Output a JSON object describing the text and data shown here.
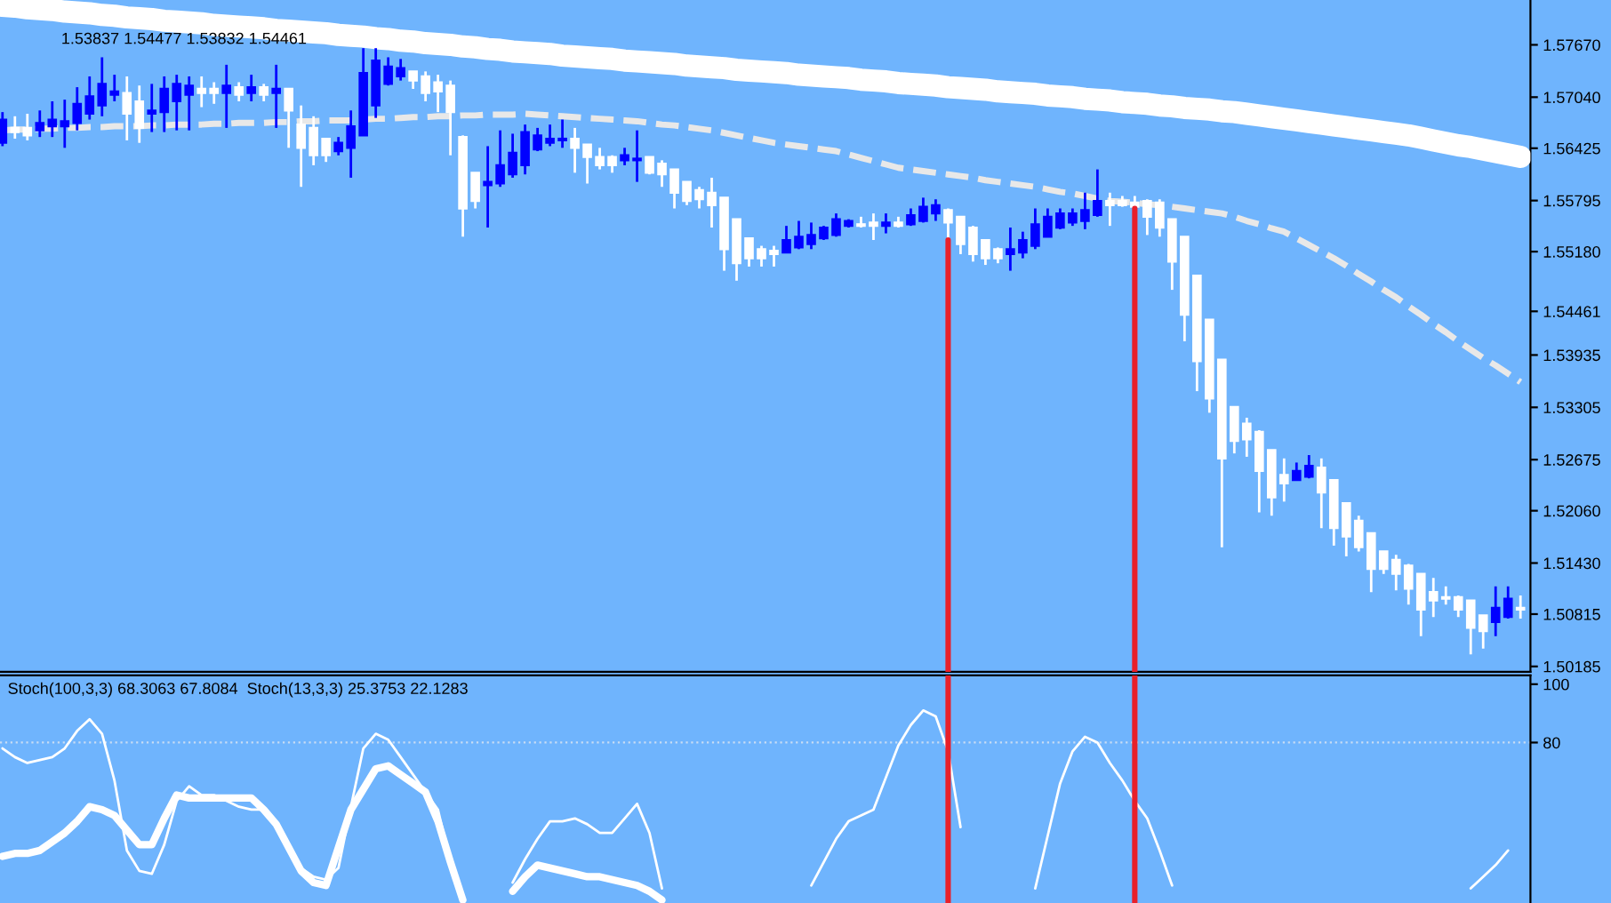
{
  "chart_data": [
    {
      "type": "candlestick",
      "categories": [
        null,
        null,
        null,
        null,
        null,
        null,
        null,
        null,
        null,
        null,
        null,
        null,
        null,
        null,
        null,
        null,
        null,
        null,
        null,
        null,
        null,
        null,
        null,
        null,
        null,
        null,
        null,
        null,
        null,
        null,
        null,
        null,
        null,
        null,
        null,
        null,
        null,
        null,
        null,
        null,
        null,
        null,
        null,
        null,
        null,
        null,
        null,
        null,
        null,
        null,
        null,
        null,
        null,
        null,
        null,
        null,
        null,
        null,
        null,
        null,
        null,
        null,
        null,
        null,
        null,
        null,
        null,
        null,
        null,
        null,
        null,
        null,
        null,
        null,
        null,
        null,
        null,
        null,
        null,
        null,
        null,
        null,
        null,
        null,
        null,
        null,
        null,
        null,
        null,
        null,
        null,
        null,
        null,
        null,
        null,
        null,
        null,
        null,
        null,
        null,
        null,
        null,
        null,
        null,
        null,
        null,
        null,
        null,
        null,
        null,
        null,
        null,
        null,
        null,
        null,
        null,
        null,
        null,
        null,
        null,
        null,
        null,
        null
      ],
      "ohlc": [
        [
          1.5649,
          1.5686,
          1.5645,
          1.5677
        ],
        [
          1.5667,
          1.5681,
          1.5654,
          1.5662
        ],
        [
          1.5667,
          1.5684,
          1.5652,
          1.5658
        ],
        [
          1.5664,
          1.5688,
          1.5656,
          1.5673
        ],
        [
          1.5669,
          1.5699,
          1.5656,
          1.5677
        ],
        [
          1.5669,
          1.5701,
          1.5643,
          1.5675
        ],
        [
          1.5673,
          1.5716,
          1.5664,
          1.5696
        ],
        [
          1.5684,
          1.5729,
          1.5677,
          1.5705
        ],
        [
          1.5694,
          1.5752,
          1.5681,
          1.572
        ],
        [
          1.5707,
          1.5731,
          1.5699,
          1.5711
        ],
        [
          1.5709,
          1.5729,
          1.5652,
          1.5684
        ],
        [
          1.5699,
          1.5718,
          1.5649,
          1.5667
        ],
        [
          1.5684,
          1.572,
          1.5662,
          1.5688
        ],
        [
          1.5686,
          1.5729,
          1.5662,
          1.5714
        ],
        [
          1.5699,
          1.5731,
          1.5664,
          1.572
        ],
        [
          1.5707,
          1.5729,
          1.5664,
          1.5718
        ],
        [
          1.5714,
          1.5729,
          1.5692,
          1.5709
        ],
        [
          1.5714,
          1.5722,
          1.5696,
          1.5709
        ],
        [
          1.5709,
          1.5743,
          1.5667,
          1.5718
        ],
        [
          1.5716,
          1.5722,
          1.5699,
          1.5707
        ],
        [
          1.5709,
          1.5731,
          1.5699,
          1.5716
        ],
        [
          1.5716,
          1.572,
          1.5699,
          1.5707
        ],
        [
          1.5709,
          1.5743,
          1.5667,
          1.5714
        ],
        [
          1.5714,
          1.5714,
          1.5643,
          1.5688
        ],
        [
          1.5671,
          1.5694,
          1.5596,
          1.5643
        ],
        [
          1.5667,
          1.5681,
          1.5622,
          1.5634
        ],
        [
          1.5654,
          1.5654,
          1.5626,
          1.5634
        ],
        [
          1.5639,
          1.5656,
          1.5634,
          1.5649
        ],
        [
          1.5643,
          1.5688,
          1.5607,
          1.5669
        ],
        [
          1.5658,
          1.5763,
          1.5658,
          1.5733
        ],
        [
          1.5694,
          1.5763,
          1.5679,
          1.5748
        ],
        [
          1.572,
          1.5752,
          1.5718,
          1.5741
        ],
        [
          1.5729,
          1.575,
          1.5724,
          1.5739
        ],
        [
          1.5735,
          1.5735,
          1.5714,
          1.5724
        ],
        [
          1.5729,
          1.5735,
          1.5699,
          1.5709
        ],
        [
          1.5722,
          1.5731,
          1.5686,
          1.5711
        ],
        [
          1.5718,
          1.5724,
          1.5634,
          1.5686
        ],
        [
          1.5656,
          1.5658,
          1.5536,
          1.557
        ],
        [
          1.5613,
          1.5613,
          1.557,
          1.5579
        ],
        [
          1.5598,
          1.5645,
          1.5547,
          1.5602
        ],
        [
          1.56,
          1.5664,
          1.5596,
          1.5622
        ],
        [
          1.5611,
          1.566,
          1.5607,
          1.5637
        ],
        [
          1.5622,
          1.5671,
          1.5611,
          1.5662
        ],
        [
          1.5641,
          1.5667,
          1.5639,
          1.5658
        ],
        [
          1.5649,
          1.5671,
          1.5645,
          1.5654
        ],
        [
          1.5652,
          1.5677,
          1.5643,
          1.5654
        ],
        [
          1.5654,
          1.5667,
          1.5613,
          1.5643
        ],
        [
          1.5647,
          1.5647,
          1.56,
          1.5632
        ],
        [
          1.5632,
          1.5643,
          1.5617,
          1.5622
        ],
        [
          1.5632,
          1.5634,
          1.5613,
          1.5622
        ],
        [
          1.5628,
          1.5643,
          1.5622,
          1.5634
        ],
        [
          1.5628,
          1.5664,
          1.5602,
          1.563
        ],
        [
          1.5632,
          1.5632,
          1.5611,
          1.5613
        ],
        [
          1.5624,
          1.5628,
          1.5596,
          1.5611
        ],
        [
          1.5617,
          1.5617,
          1.557,
          1.5589
        ],
        [
          1.5602,
          1.5602,
          1.5574,
          1.5579
        ],
        [
          1.5592,
          1.5596,
          1.557,
          1.5581
        ],
        [
          1.5589,
          1.5607,
          1.5547,
          1.5574
        ],
        [
          1.5583,
          1.5583,
          1.5495,
          1.5521
        ],
        [
          1.5557,
          1.5557,
          1.5483,
          1.5504
        ],
        [
          1.5534,
          1.5534,
          1.55,
          1.551
        ],
        [
          1.5521,
          1.5525,
          1.55,
          1.551
        ],
        [
          1.5519,
          1.5525,
          1.55,
          1.5515
        ],
        [
          1.5517,
          1.5549,
          1.5517,
          1.5532
        ],
        [
          1.5523,
          1.5555,
          1.5521,
          1.5536
        ],
        [
          1.5527,
          1.5553,
          1.5521,
          1.5538
        ],
        [
          1.5534,
          1.5549,
          1.5532,
          1.5547
        ],
        [
          1.5538,
          1.5564,
          1.5536,
          1.5557
        ],
        [
          1.5549,
          1.5557,
          1.5547,
          1.5555
        ],
        [
          1.5551,
          1.556,
          1.5547,
          1.5549
        ],
        [
          1.5553,
          1.5564,
          1.5532,
          1.5549
        ],
        [
          1.5549,
          1.5564,
          1.554,
          1.5553
        ],
        [
          1.5553,
          1.556,
          1.5547,
          1.5549
        ],
        [
          1.5551,
          1.557,
          1.5549,
          1.5562
        ],
        [
          1.5555,
          1.5583,
          1.5553,
          1.5572
        ],
        [
          1.5564,
          1.5581,
          1.5555,
          1.5574
        ],
        [
          1.5568,
          1.557,
          1.5532,
          1.5553
        ],
        [
          1.556,
          1.556,
          1.5515,
          1.5527
        ],
        [
          1.5547,
          1.5549,
          1.5506,
          1.5515
        ],
        [
          1.5532,
          1.5532,
          1.5502,
          1.551
        ],
        [
          1.5521,
          1.5523,
          1.5504,
          1.551
        ],
        [
          1.5515,
          1.5547,
          1.5495,
          1.5521
        ],
        [
          1.5517,
          1.5542,
          1.551,
          1.5532
        ],
        [
          1.5525,
          1.557,
          1.5521,
          1.5551
        ],
        [
          1.5536,
          1.557,
          1.5536,
          1.556
        ],
        [
          1.5547,
          1.557,
          1.5545,
          1.5564
        ],
        [
          1.5553,
          1.557,
          1.5549,
          1.5564
        ],
        [
          1.5555,
          1.5589,
          1.5545,
          1.5568
        ],
        [
          1.5562,
          1.5617,
          1.556,
          1.5579
        ],
        [
          1.5579,
          1.5589,
          1.5549,
          1.5574
        ],
        [
          1.5579,
          1.5585,
          1.5572,
          1.5574
        ],
        [
          1.5577,
          1.5585,
          1.557,
          1.5572
        ],
        [
          1.5579,
          1.5581,
          1.5538,
          1.556
        ],
        [
          1.5577,
          1.5581,
          1.5536,
          1.5547
        ],
        [
          1.5557,
          1.5557,
          1.5472,
          1.5506
        ],
        [
          1.5536,
          1.5536,
          1.541,
          1.5442
        ],
        [
          1.5489,
          1.5489,
          1.535,
          1.5386
        ],
        [
          1.5436,
          1.5436,
          1.5324,
          1.5341
        ],
        [
          1.5388,
          1.5388,
          1.5162,
          1.5269
        ],
        [
          1.5331,
          1.5331,
          1.5275,
          1.529
        ],
        [
          1.5311,
          1.5318,
          1.5271,
          1.5292
        ],
        [
          1.5301,
          1.5303,
          1.5204,
          1.5254
        ],
        [
          1.5279,
          1.5279,
          1.52,
          1.5222
        ],
        [
          1.5249,
          1.5269,
          1.5217,
          1.5239
        ],
        [
          1.5243,
          1.5264,
          1.5243,
          1.5254
        ],
        [
          1.5247,
          1.5273,
          1.5245,
          1.526
        ],
        [
          1.5258,
          1.5269,
          1.5185,
          1.5228
        ],
        [
          1.5243,
          1.5243,
          1.5164,
          1.5185
        ],
        [
          1.5215,
          1.5215,
          1.5151,
          1.5175
        ],
        [
          1.5194,
          1.52,
          1.5157,
          1.5162
        ],
        [
          1.5179,
          1.5179,
          1.5108,
          1.5136
        ],
        [
          1.5157,
          1.5157,
          1.513,
          1.5136
        ],
        [
          1.5147,
          1.5153,
          1.511,
          1.513
        ],
        [
          1.514,
          1.5142,
          1.5093,
          1.5112
        ],
        [
          1.513,
          1.513,
          1.5055,
          1.5087
        ],
        [
          1.5108,
          1.5125,
          1.5078,
          1.5098
        ],
        [
          1.5102,
          1.5115,
          1.5093,
          1.51
        ],
        [
          1.5102,
          1.5104,
          1.5078,
          1.5087
        ],
        [
          1.5098,
          1.5098,
          1.5033,
          1.5065
        ],
        [
          1.508,
          1.508,
          1.504,
          1.5061
        ],
        [
          1.5072,
          1.5115,
          1.5055,
          1.5089
        ],
        [
          1.5078,
          1.5115,
          1.5076,
          1.51
        ],
        [
          1.5089,
          1.5104,
          1.5076,
          1.5087
        ]
      ],
      "colors": [
        "#0000ff",
        "#ffffff",
        "#ffffff",
        "#0000ff",
        "#0000ff",
        "#0000ff",
        "#0000ff",
        "#0000ff",
        "#0000ff",
        "#0000ff",
        "#ffffff",
        "#ffffff",
        "#0000ff",
        "#0000ff",
        "#0000ff",
        "#0000ff",
        "#ffffff",
        "#ffffff",
        "#0000ff",
        "#ffffff",
        "#0000ff",
        "#ffffff",
        "#0000ff",
        "#ffffff",
        "#ffffff",
        "#ffffff",
        "#ffffff",
        "#0000ff",
        "#0000ff",
        "#0000ff",
        "#0000ff",
        "#0000ff",
        "#0000ff",
        "#ffffff",
        "#ffffff",
        "#ffffff",
        "#ffffff",
        "#ffffff",
        "#ffffff",
        "#0000ff",
        "#0000ff",
        "#0000ff",
        "#0000ff",
        "#0000ff",
        "#0000ff",
        "#0000ff",
        "#ffffff",
        "#ffffff",
        "#ffffff",
        "#ffffff",
        "#0000ff",
        "#0000ff",
        "#ffffff",
        "#ffffff",
        "#ffffff",
        "#ffffff",
        "#ffffff",
        "#ffffff",
        "#ffffff",
        "#ffffff",
        "#ffffff",
        "#ffffff",
        "#ffffff",
        "#0000ff",
        "#0000ff",
        "#0000ff",
        "#0000ff",
        "#0000ff",
        "#0000ff",
        "#ffffff",
        "#ffffff",
        "#0000ff",
        "#ffffff",
        "#0000ff",
        "#0000ff",
        "#0000ff",
        "#ffffff",
        "#ffffff",
        "#ffffff",
        "#ffffff",
        "#ffffff",
        "#0000ff",
        "#0000ff",
        "#0000ff",
        "#0000ff",
        "#0000ff",
        "#0000ff",
        "#0000ff",
        "#0000ff",
        "#ffffff",
        "#ffffff",
        "#ffffff",
        "#ffffff",
        "#ffffff",
        "#ffffff",
        "#ffffff",
        "#ffffff",
        "#ffffff",
        "#ffffff",
        "#ffffff",
        "#ffffff",
        "#ffffff",
        "#ffffff",
        "#ffffff",
        "#0000ff",
        "#0000ff",
        "#ffffff",
        "#ffffff",
        "#ffffff",
        "#ffffff",
        "#ffffff",
        "#ffffff",
        "#ffffff",
        "#ffffff",
        "#ffffff",
        "#ffffff",
        "#ffffff",
        "#ffffff",
        "#ffffff",
        "#ffffff",
        "#0000ff",
        "#0000ff",
        "#ffffff"
      ],
      "series": [
        {
          "type": "line",
          "color": "#ffffff",
          "line_style": "solid",
          "values": [
            1.5814,
            1.5813,
            1.5811,
            1.581,
            1.5809,
            1.5807,
            1.5806,
            1.5805,
            1.5803,
            1.5802,
            1.58,
            1.5799,
            1.5798,
            1.5796,
            1.5795,
            1.5794,
            1.5793,
            1.5791,
            1.579,
            1.5789,
            1.5788,
            1.5787,
            1.5785,
            1.5784,
            1.5783,
            1.5782,
            1.5781,
            1.5779,
            1.5778,
            1.5777,
            1.5775,
            1.5774,
            1.5772,
            1.5771,
            1.5769,
            1.5768,
            1.5767,
            1.5765,
            1.5764,
            1.5762,
            1.5761,
            1.5759,
            1.5758,
            1.5757,
            1.5756,
            1.5754,
            1.5753,
            1.5752,
            1.5751,
            1.575,
            1.5748,
            1.5747,
            1.5746,
            1.5745,
            1.5744,
            1.5742,
            1.5741,
            1.574,
            1.5739,
            1.5737,
            1.5736,
            1.5735,
            1.5734,
            1.5733,
            1.5731,
            1.573,
            1.5729,
            1.5728,
            1.5727,
            1.5725,
            1.5724,
            1.5723,
            1.5721,
            1.572,
            1.5719,
            1.5718,
            1.5716,
            1.5715,
            1.5714,
            1.5713,
            1.5711,
            1.571,
            1.5709,
            1.5708,
            1.5706,
            1.5705,
            1.5704,
            1.5702,
            1.5701,
            1.57,
            1.5698,
            1.5697,
            1.5696,
            1.5694,
            1.5693,
            1.5691,
            1.569,
            1.5689,
            1.5687,
            1.5686,
            1.5684,
            1.5682,
            1.568,
            1.5678,
            1.5676,
            1.5674,
            1.5672,
            1.567,
            1.5668,
            1.5666,
            1.5664,
            1.5662,
            1.566,
            1.5658,
            1.5655,
            1.5652,
            1.5649,
            1.5646,
            1.5644,
            1.5641,
            1.5638,
            1.5635,
            1.5632
          ]
        },
        {
          "type": "line",
          "color": "#e8e8e8",
          "line_style": "dashed",
          "values": [
            1.5664,
            1.5665,
            1.5665,
            1.5666,
            1.5666,
            1.5667,
            1.5667,
            1.5668,
            1.5668,
            1.5669,
            1.5669,
            1.5669,
            1.567,
            1.567,
            1.5671,
            1.5671,
            1.5671,
            1.5672,
            1.5672,
            1.5673,
            1.5673,
            1.5673,
            1.5674,
            1.5674,
            1.5675,
            1.5675,
            1.5676,
            1.5676,
            1.5676,
            1.5677,
            1.5678,
            1.5678,
            1.5679,
            1.568,
            1.568,
            1.5681,
            1.5681,
            1.5682,
            1.5682,
            1.5683,
            1.5683,
            1.5683,
            1.5684,
            1.5683,
            1.5682,
            1.5681,
            1.568,
            1.5679,
            1.5678,
            1.5677,
            1.5676,
            1.5675,
            1.5673,
            1.5671,
            1.567,
            1.5668,
            1.5666,
            1.5664,
            1.5661,
            1.5658,
            1.5655,
            1.5652,
            1.5649,
            1.5647,
            1.5645,
            1.5643,
            1.5641,
            1.5639,
            1.5635,
            1.5631,
            1.5627,
            1.5623,
            1.5619,
            1.5617,
            1.5615,
            1.5613,
            1.5611,
            1.5609,
            1.5607,
            1.5604,
            1.5602,
            1.56,
            1.5598,
            1.5596,
            1.5593,
            1.559,
            1.5588,
            1.5585,
            1.5582,
            1.5579,
            1.5578,
            1.5577,
            1.5575,
            1.5574,
            1.5572,
            1.557,
            1.5568,
            1.5566,
            1.5564,
            1.556,
            1.5555,
            1.5551,
            1.5546,
            1.5542,
            1.5534,
            1.5526,
            1.5518,
            1.551,
            1.5501,
            1.5491,
            1.5482,
            1.5472,
            1.5463,
            1.5452,
            1.5442,
            1.5431,
            1.5421,
            1.541,
            1.54,
            1.539,
            1.5381,
            1.5371,
            1.5361
          ]
        }
      ],
      "ylim": [
        1.5012,
        1.5821
      ],
      "yticks": [
        {
          "value": 1.5767,
          "label": "1.57670"
        },
        {
          "value": 1.5704,
          "label": "1.57040"
        },
        {
          "value": 1.56425,
          "label": "1.56425"
        },
        {
          "value": 1.55795,
          "label": "1.55795"
        },
        {
          "value": 1.5518,
          "label": "1.55180"
        },
        {
          "value": 1.54461,
          "label": "1.54461"
        },
        {
          "value": 1.53935,
          "label": "1.53935"
        },
        {
          "value": 1.53305,
          "label": "1.53305"
        },
        {
          "value": 1.52675,
          "label": "1.52675"
        },
        {
          "value": 1.5206,
          "label": "1.52060"
        },
        {
          "value": 1.5143,
          "label": "1.51430"
        },
        {
          "value": 1.50815,
          "label": "1.50815"
        },
        {
          "value": 1.50185,
          "label": "1.50185"
        }
      ],
      "tick_labels": "y",
      "annotations": [
        "1.53837 1.54477 1.53832 1.54461"
      ]
    },
    {
      "type": "line",
      "categories": [
        null,
        null,
        null,
        null,
        null,
        null,
        null,
        null,
        null,
        null,
        null,
        null,
        null,
        null,
        null,
        null,
        null,
        null,
        null,
        null,
        null,
        null,
        null,
        null,
        null,
        null,
        null,
        null,
        null,
        null,
        null,
        null,
        null,
        null,
        null,
        null,
        null,
        null,
        null,
        null,
        null,
        null,
        null,
        null,
        null,
        null,
        null,
        null,
        null,
        null,
        null,
        null,
        null,
        null,
        null,
        null,
        null,
        null,
        null,
        null,
        null,
        null,
        null,
        null,
        null,
        null,
        null,
        null,
        null,
        null,
        null,
        null,
        null,
        null,
        null,
        null,
        null,
        null,
        null,
        null,
        null,
        null,
        null,
        null,
        null,
        null,
        null,
        null,
        null,
        null,
        null,
        null,
        null,
        null,
        null,
        null,
        null,
        null,
        null,
        null,
        null,
        null,
        null,
        null,
        null,
        null,
        null,
        null,
        null,
        null,
        null,
        null,
        null,
        null,
        null,
        null,
        null,
        null,
        null,
        null,
        null,
        null,
        null
      ],
      "series": [
        {
          "type": "line",
          "color": "#ffffff",
          "line_style": "solid",
          "values": [
            41,
            42,
            42,
            43,
            46,
            49,
            53,
            58,
            57,
            55,
            50,
            45,
            45,
            54,
            62,
            61,
            61,
            61,
            61,
            61,
            61,
            57,
            52,
            44,
            36,
            32,
            31,
            44,
            57,
            64,
            71,
            72,
            69,
            66,
            63,
            53,
            39,
            26,
            null,
            null,
            null,
            29,
            34,
            38,
            37,
            36,
            35,
            34,
            34,
            33,
            32,
            31,
            29,
            26,
            null,
            null,
            null,
            null,
            null,
            null,
            null,
            null,
            null,
            null,
            null,
            null,
            null,
            null,
            null,
            null,
            null,
            null,
            null,
            null,
            null,
            null,
            null,
            null,
            null,
            null,
            null,
            null,
            null,
            null,
            null,
            null,
            null,
            null,
            null,
            null,
            null,
            null,
            null,
            null,
            null,
            null,
            null,
            null,
            null,
            null,
            null,
            null,
            null,
            null,
            null,
            null,
            null,
            null,
            null,
            null,
            null,
            null,
            null,
            null,
            null,
            null,
            null,
            null,
            null,
            null,
            null,
            null,
            null
          ]
        },
        {
          "type": "line",
          "color": "#ffffff",
          "line_style": "solid",
          "values": [
            78,
            75,
            73,
            74,
            75,
            78,
            84,
            88,
            83,
            67,
            43,
            36,
            35,
            45,
            60,
            65,
            62,
            62,
            60,
            58,
            57,
            57,
            52,
            43,
            37,
            34,
            33,
            37,
            58,
            78,
            83,
            81,
            75,
            69,
            63,
            57,
            39,
            26,
            null,
            null,
            null,
            32,
            40,
            47,
            53,
            53,
            54,
            52,
            49,
            49,
            54,
            59,
            49,
            30,
            null,
            null,
            null,
            null,
            null,
            null,
            null,
            null,
            null,
            null,
            null,
            31,
            39,
            47,
            53,
            55,
            57,
            68,
            79,
            86,
            91,
            89,
            77,
            51,
            null,
            null,
            null,
            null,
            null,
            30,
            48,
            66,
            77,
            82,
            80,
            73,
            67,
            60,
            54,
            43,
            31,
            null,
            null,
            null,
            null,
            null,
            null,
            null,
            null,
            null,
            null,
            null,
            null,
            null,
            null,
            null,
            null,
            null,
            null,
            null,
            null,
            null,
            null,
            null,
            30,
            34,
            38,
            43,
            null
          ]
        }
      ],
      "ylim": [
        25,
        103
      ],
      "yticks": [
        100,
        80
      ],
      "tick_labels": "y",
      "ref_lines": [
        {
          "axis": "y",
          "value": 80,
          "color": "#c8dcf4",
          "line_style": "dotted"
        }
      ],
      "annotations": [
        "Stoch(100,3,3) 68.3063 67.8084  Stoch(13,3,3) 25.3753 22.1283"
      ]
    }
  ]
}
